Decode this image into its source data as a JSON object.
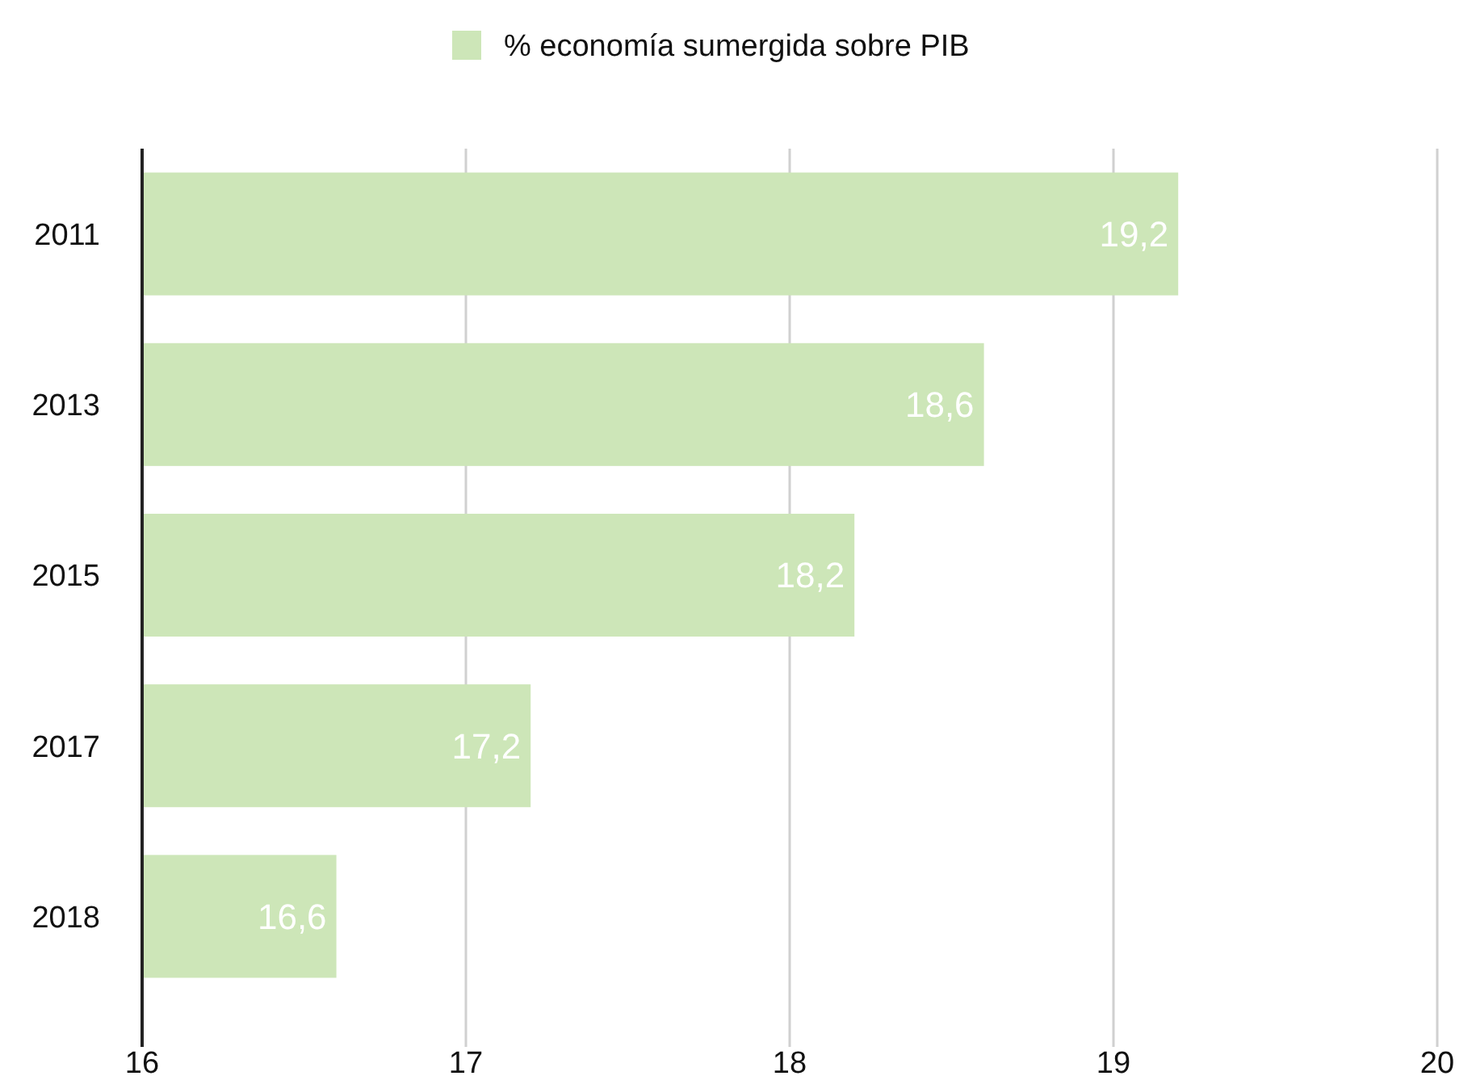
{
  "chart_data": {
    "type": "bar",
    "orientation": "horizontal",
    "categories": [
      "2011",
      "2013",
      "2015",
      "2017",
      "2018"
    ],
    "series": [
      {
        "name": "% economía sumergida sobre PIB",
        "color": "#cde6b8",
        "values": [
          19.2,
          18.6,
          18.2,
          17.2,
          16.6
        ],
        "value_labels": [
          "19,2",
          "18,6",
          "18,2",
          "17,2",
          "16,6"
        ]
      }
    ],
    "xlim": [
      16,
      20
    ],
    "xticks": [
      16,
      17,
      18,
      19,
      20
    ],
    "grid": "x",
    "legend": "top"
  }
}
